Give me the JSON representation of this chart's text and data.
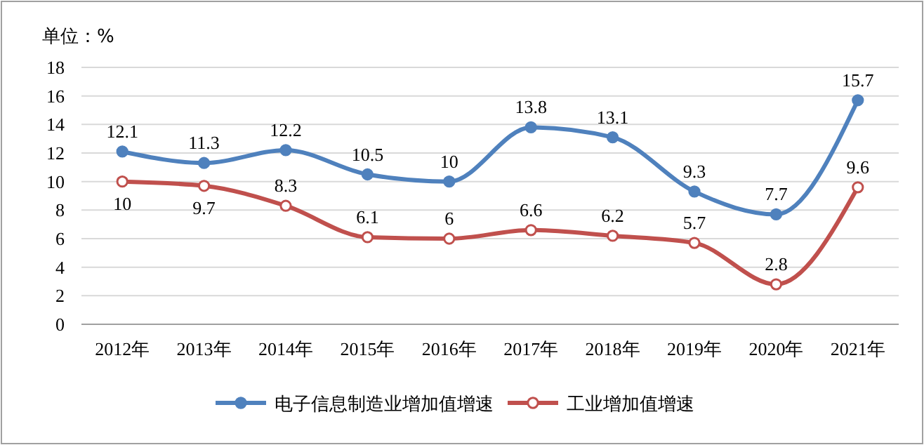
{
  "chart_data": {
    "type": "line",
    "ylabel": "单位：%",
    "categories": [
      "2012年",
      "2013年",
      "2014年",
      "2015年",
      "2016年",
      "2017年",
      "2018年",
      "2019年",
      "2020年",
      "2021年"
    ],
    "series": [
      {
        "name": "电子信息制造业增加值增速",
        "color": "#4f81bd",
        "values": [
          12.1,
          11.3,
          12.2,
          10.5,
          10,
          13.8,
          13.1,
          9.3,
          7.7,
          15.7
        ]
      },
      {
        "name": "工业增加值增速",
        "color": "#c0504d",
        "values": [
          10,
          9.7,
          8.3,
          6.1,
          6,
          6.6,
          6.2,
          5.7,
          2.8,
          9.6
        ]
      }
    ],
    "ylim": [
      0,
      18
    ],
    "yticks": [
      0,
      2,
      4,
      6,
      8,
      10,
      12,
      14,
      16,
      18
    ],
    "grid": "y",
    "legend": "bottom",
    "marker": "circle",
    "line_style": "solid",
    "data_labels": true
  }
}
